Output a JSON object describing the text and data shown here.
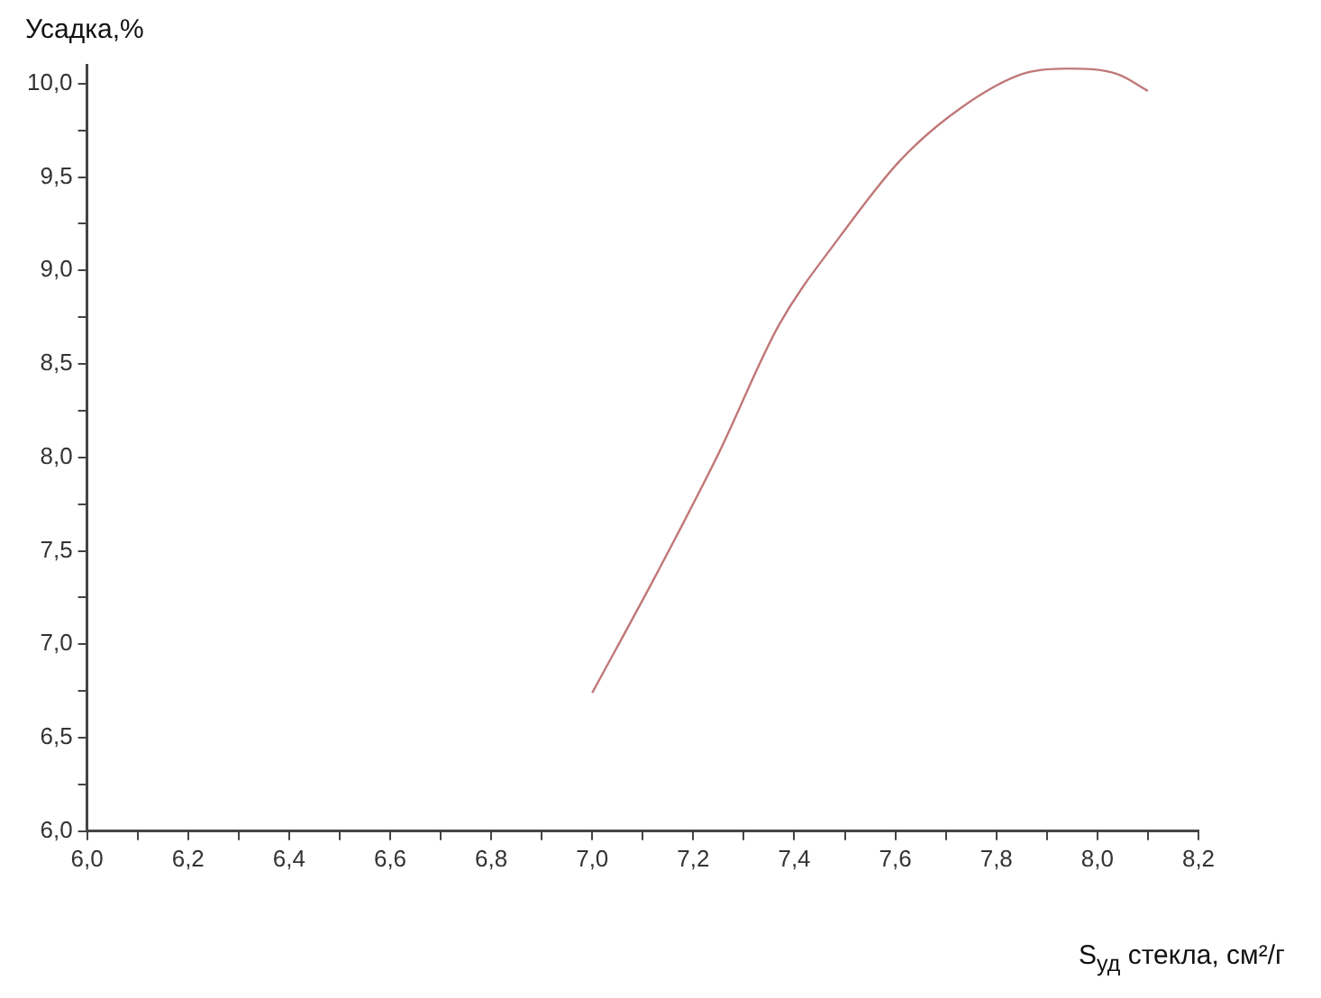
{
  "chart_data": {
    "type": "line",
    "ylabel": "Усадка,%",
    "xlabel": "S$_{уд}$ стекла, см²/г",
    "x": [
      7.0,
      7.13,
      7.25,
      7.37,
      7.49,
      7.61,
      7.73,
      7.85,
      7.94,
      8.04,
      8.1
    ],
    "series": [
      {
        "color": "#c07878",
        "values": [
          6.74,
          7.39,
          8.02,
          8.71,
          9.18,
          9.59,
          9.87,
          10.05,
          10.08,
          10.05,
          9.96
        ]
      }
    ],
    "xlim": [
      6.0,
      8.2
    ],
    "xticks": [
      {
        "value": 6.0,
        "label": "6,0"
      },
      {
        "value": 6.1,
        "label": null
      },
      {
        "value": 6.2,
        "label": "6,2"
      },
      {
        "value": 6.3,
        "label": null
      },
      {
        "value": 6.4,
        "label": "6,4"
      },
      {
        "value": 6.5,
        "label": null
      },
      {
        "value": 6.6,
        "label": "6,6"
      },
      {
        "value": 6.7,
        "label": null
      },
      {
        "value": 6.8,
        "label": "6,8"
      },
      {
        "value": 6.9,
        "label": null
      },
      {
        "value": 7.0,
        "label": "7,0"
      },
      {
        "value": 7.1,
        "label": null
      },
      {
        "value": 7.2,
        "label": "7,2"
      },
      {
        "value": 7.3,
        "label": null
      },
      {
        "value": 7.4,
        "label": "7,4"
      },
      {
        "value": 7.5,
        "label": null
      },
      {
        "value": 7.6,
        "label": "7,6"
      },
      {
        "value": 7.7,
        "label": null
      },
      {
        "value": 7.8,
        "label": "7,8"
      },
      {
        "value": 7.9,
        "label": null
      },
      {
        "value": 8.0,
        "label": "8,0"
      },
      {
        "value": 8.1,
        "label": null
      },
      {
        "value": 8.2,
        "label": "8,2"
      }
    ],
    "ylim": [
      6.0,
      10.1
    ],
    "yticks": [
      {
        "value": 6.0,
        "label": "6,0"
      },
      {
        "value": 6.25,
        "label": null
      },
      {
        "value": 6.5,
        "label": "6,5"
      },
      {
        "value": 6.75,
        "label": null
      },
      {
        "value": 7.0,
        "label": "7,0"
      },
      {
        "value": 7.25,
        "label": null
      },
      {
        "value": 7.5,
        "label": "7,5"
      },
      {
        "value": 7.75,
        "label": null
      },
      {
        "value": 8.0,
        "label": "8,0"
      },
      {
        "value": 8.25,
        "label": null
      },
      {
        "value": 8.5,
        "label": "8,5"
      },
      {
        "value": 8.75,
        "label": null
      },
      {
        "value": 9.0,
        "label": "9,0"
      },
      {
        "value": 9.25,
        "label": null
      },
      {
        "value": 9.5,
        "label": "9,5"
      },
      {
        "value": 9.75,
        "label": null
      },
      {
        "value": 10.0,
        "label": "10,0"
      }
    ],
    "grid": false,
    "legend": false,
    "marker": "none",
    "line_style": "solid"
  }
}
